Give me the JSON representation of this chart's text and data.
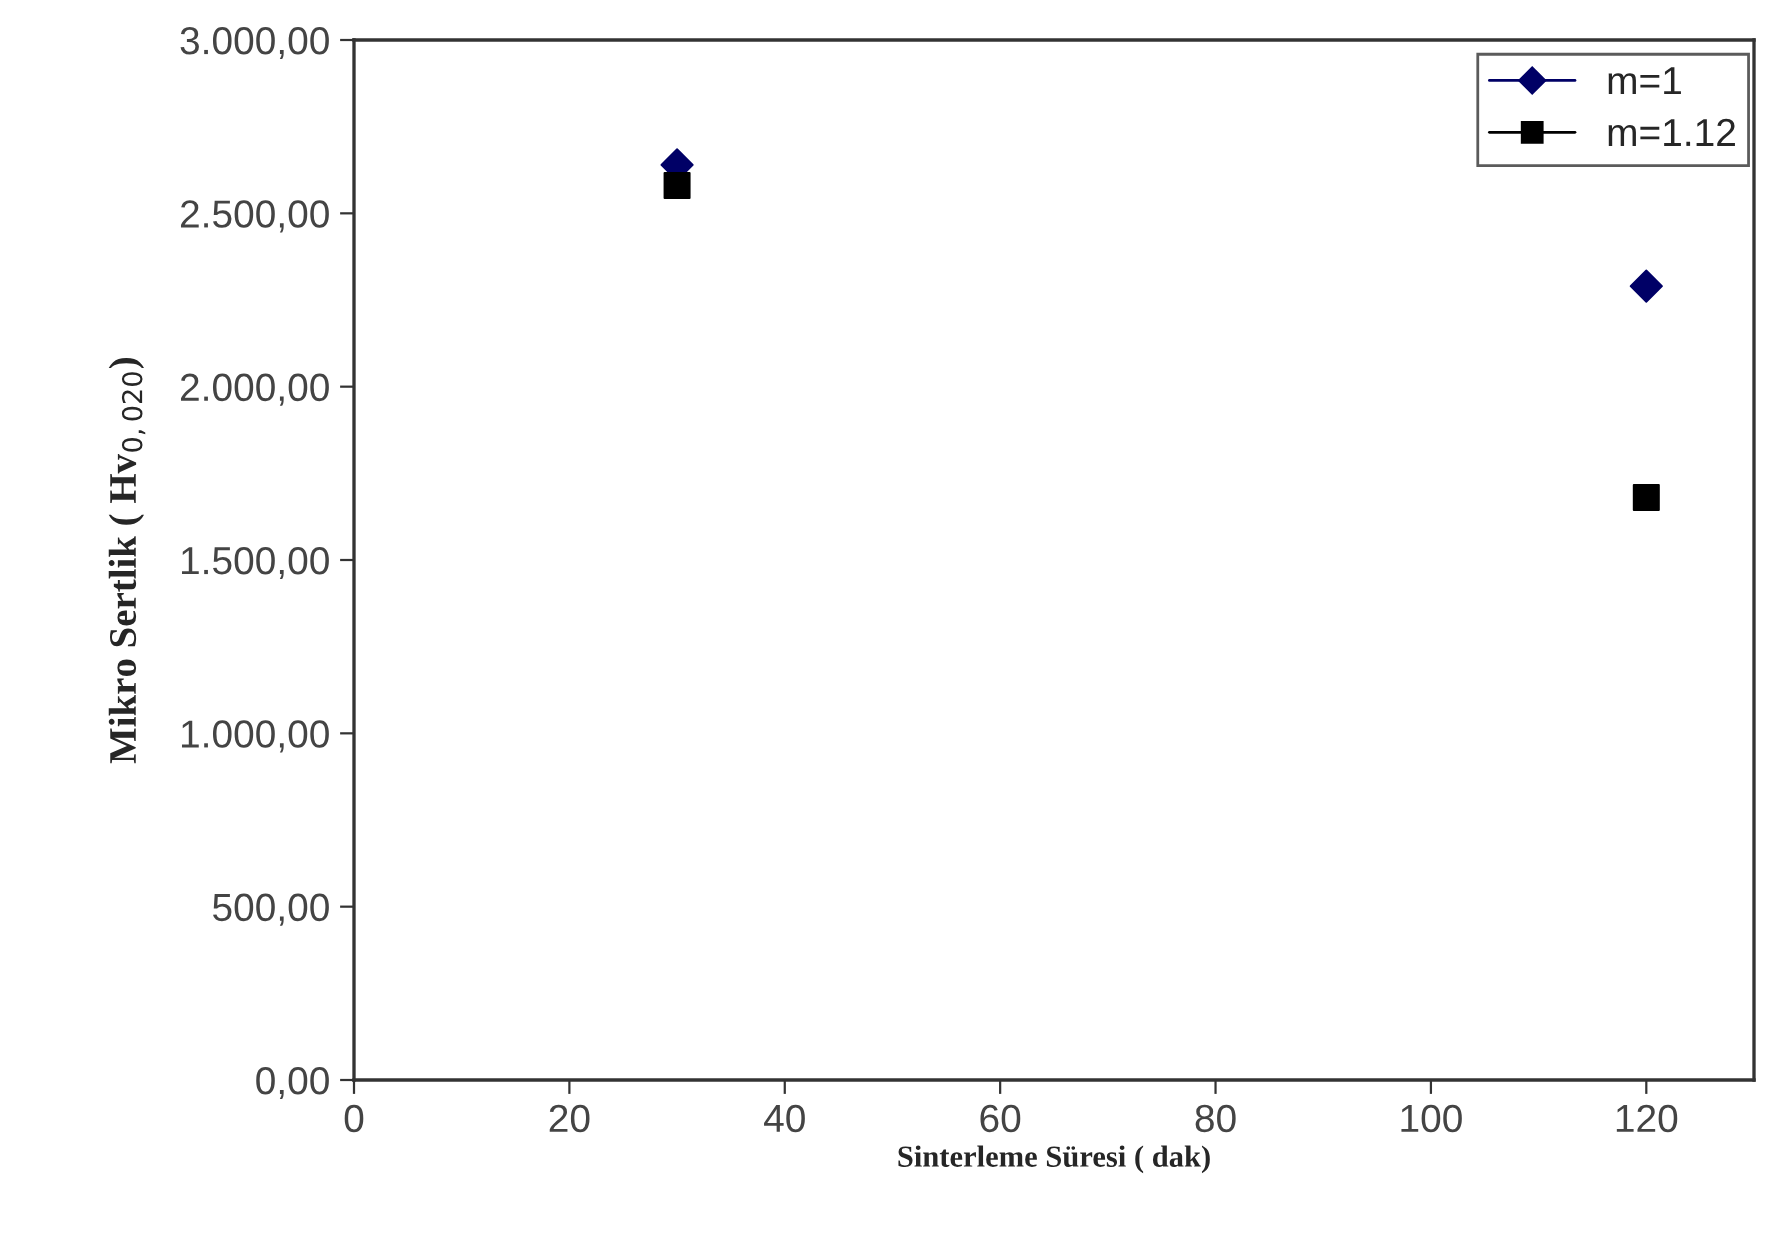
{
  "chart_data": {
    "type": "scatter",
    "xlabel": "Sinterleme Süresi ( dak)",
    "ylabel": "Mikro Sertlik ( Hv$_{0,020}$)",
    "x": [
      30,
      120
    ],
    "series": [
      {
        "name": "m=1",
        "color": "#000066",
        "values": [
          2640,
          2290
        ],
        "marker": "diamond"
      },
      {
        "name": "m=1.12",
        "color": "#000000",
        "values": [
          2580,
          1680
        ],
        "marker": "square"
      }
    ],
    "xlim": [
      0,
      130
    ],
    "xticks": [
      0,
      20,
      40,
      60,
      80,
      100,
      120
    ],
    "ylim": [
      0,
      3000
    ],
    "yticks": [
      {
        "value": 0,
        "label": "0,00"
      },
      {
        "value": 500,
        "label": "500,00"
      },
      {
        "value": 1000,
        "label": "1.000,00"
      },
      {
        "value": 1500,
        "label": "1.500,00"
      },
      {
        "value": 2000,
        "label": "2.000,00"
      },
      {
        "value": 2500,
        "label": "2.500,00"
      },
      {
        "value": 3000,
        "label": "3.000,00"
      }
    ],
    "grid": false,
    "legend": "top right"
  }
}
